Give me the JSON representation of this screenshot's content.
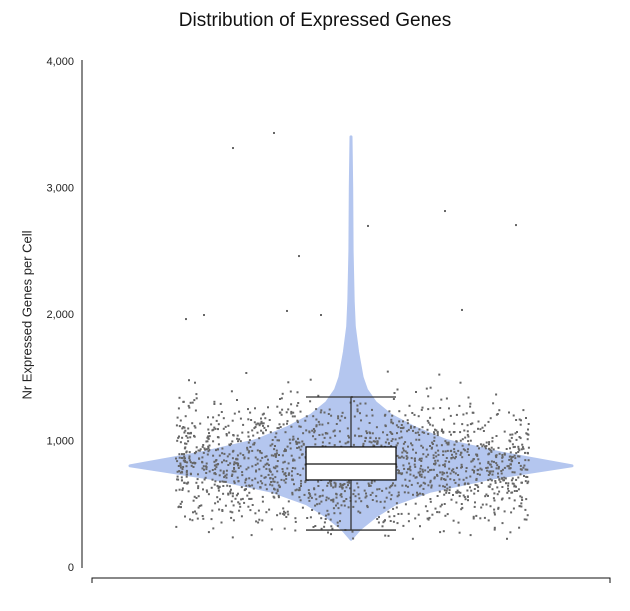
{
  "chart_data": {
    "type": "violin",
    "title": "Distribution of Expressed Genes",
    "xlabel": "",
    "ylabel": "Nr Expressed Genes per Cell",
    "ylim": [
      0,
      4000
    ],
    "yticks": [
      0,
      1000,
      2000,
      3000,
      4000
    ],
    "ytick_labels": [
      "0",
      "1,000",
      "2,000",
      "3,000",
      "4,000"
    ],
    "grid": false,
    "box": {
      "whisker_low": 292,
      "q1": 688,
      "median": 814,
      "q3": 949,
      "whisker_high": 1344
    },
    "density_profile": [
      [
        220,
        0
      ],
      [
        300,
        0.04
      ],
      [
        400,
        0.11
      ],
      [
        500,
        0.2
      ],
      [
        600,
        0.36
      ],
      [
        700,
        0.63
      ],
      [
        800,
        1
      ],
      [
        900,
        0.68
      ],
      [
        1000,
        0.43
      ],
      [
        1100,
        0.29
      ],
      [
        1200,
        0.18
      ],
      [
        1300,
        0.11
      ],
      [
        1400,
        0.07
      ],
      [
        1500,
        0.05
      ],
      [
        1700,
        0.03
      ],
      [
        1900,
        0.015
      ],
      [
        2100,
        0.01
      ],
      [
        2500,
        0.005
      ],
      [
        3000,
        0.003
      ],
      [
        3400,
        0
      ]
    ],
    "points": {
      "approx_count": 1800,
      "center": 810,
      "spread": 250,
      "min": 200,
      "max": 1650
    },
    "outliers": [
      3312,
      3431,
      2814,
      2703,
      2696,
      2458,
      2024,
      1960,
      1992,
      2032,
      1992
    ],
    "colors": {
      "violin": "#b4c6ef",
      "points": "#666666",
      "box_fill": "#ffffff",
      "box_line": "#333333"
    }
  }
}
